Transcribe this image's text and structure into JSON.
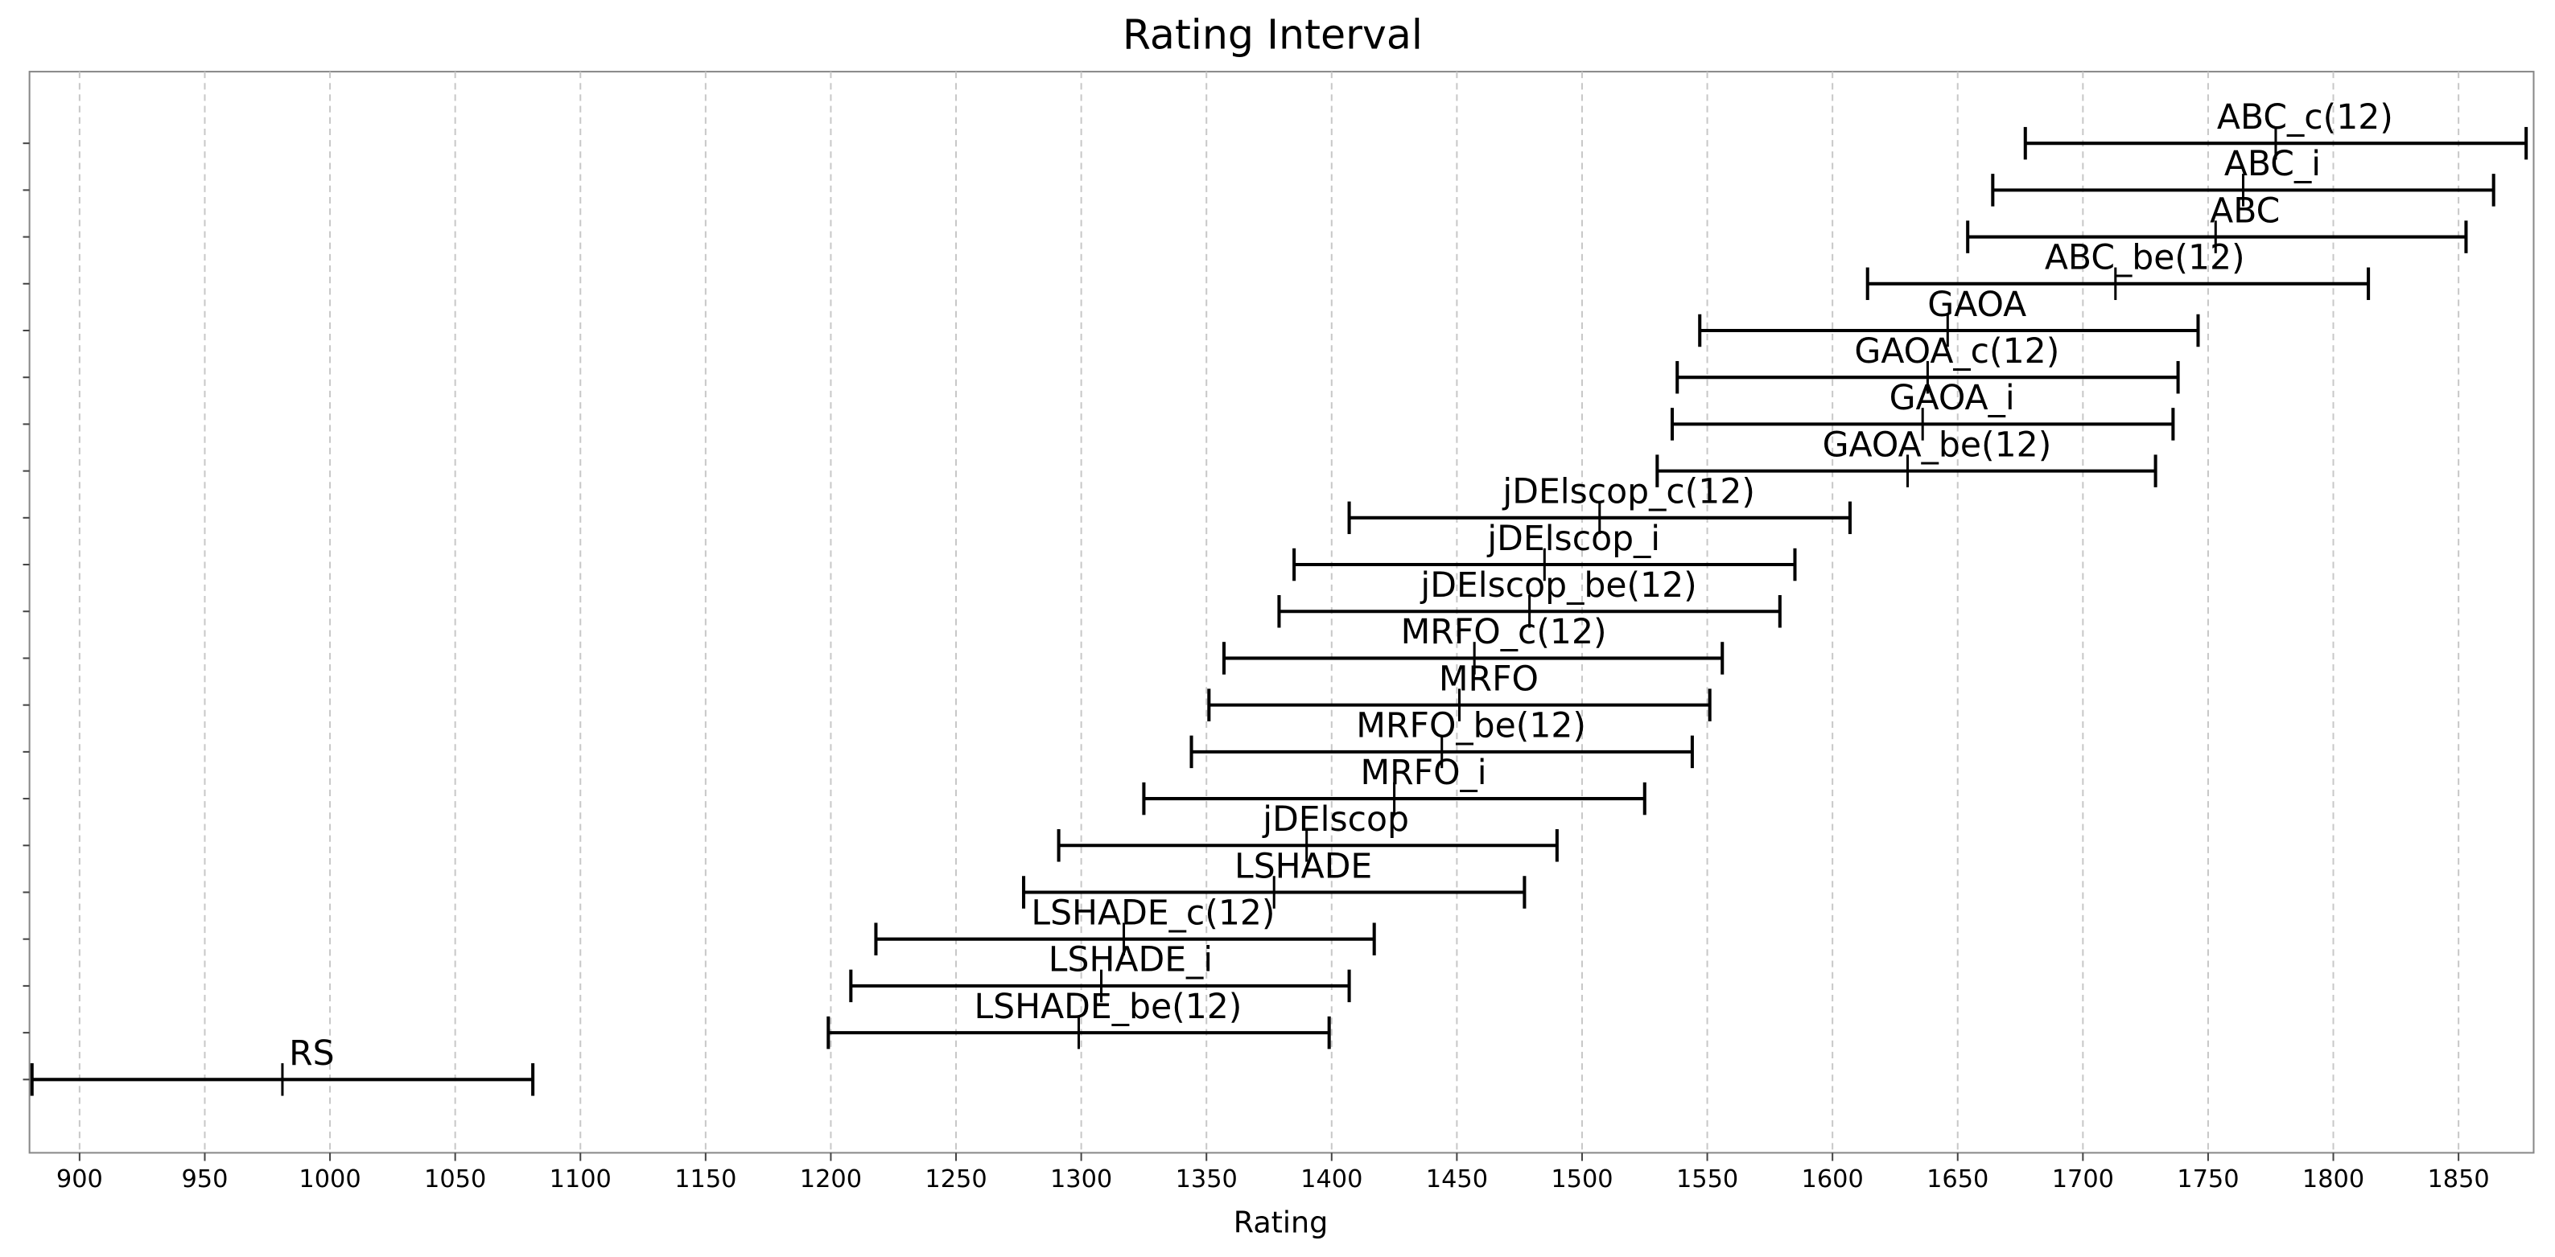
{
  "chart_data": {
    "type": "interval",
    "title": "Rating Interval",
    "x_label": "Rating",
    "categories": [
      "RS",
      "LSHADE_be(12)",
      "LSHADE_i",
      "LSHADE_c(12)",
      "LSHADE",
      "jDElscop",
      "MRFO_i",
      "MRFO_be(12)",
      "MRFO",
      "MRFO_c(12)",
      "jDElscop_be(12)",
      "jDElscop_i",
      "jDElscop_c(12)",
      "GAOA_be(12)",
      "GAOA_i",
      "GAOA_c(12)",
      "GAOA",
      "ABC_be(12)",
      "ABC",
      "ABC_i",
      "ABC_c(12)"
    ],
    "low": [
      881,
      1199,
      1208,
      1218,
      1277,
      1291,
      1325,
      1344,
      1351,
      1357,
      1379,
      1385,
      1407,
      1530,
      1536,
      1538,
      1547,
      1614,
      1654,
      1664,
      1677
    ],
    "values": [
      981,
      1299,
      1308,
      1317,
      1377,
      1390,
      1425,
      1444,
      1451,
      1457,
      1479,
      1485,
      1507,
      1630,
      1636,
      1638,
      1646,
      1713,
      1753,
      1764,
      1777
    ],
    "high": [
      1081,
      1399,
      1407,
      1417,
      1477,
      1490,
      1525,
      1544,
      1551,
      1556,
      1579,
      1585,
      1607,
      1729,
      1736,
      1738,
      1746,
      1814,
      1853,
      1864,
      1877
    ],
    "color": "#000000",
    "xlim": [
      880,
      1880
    ],
    "xticks": [
      900,
      950,
      1000,
      1050,
      1100,
      1150,
      1200,
      1250,
      1300,
      1350,
      1400,
      1450,
      1500,
      1550,
      1600,
      1650,
      1700,
      1750,
      1800,
      1850
    ],
    "grid": true
  }
}
